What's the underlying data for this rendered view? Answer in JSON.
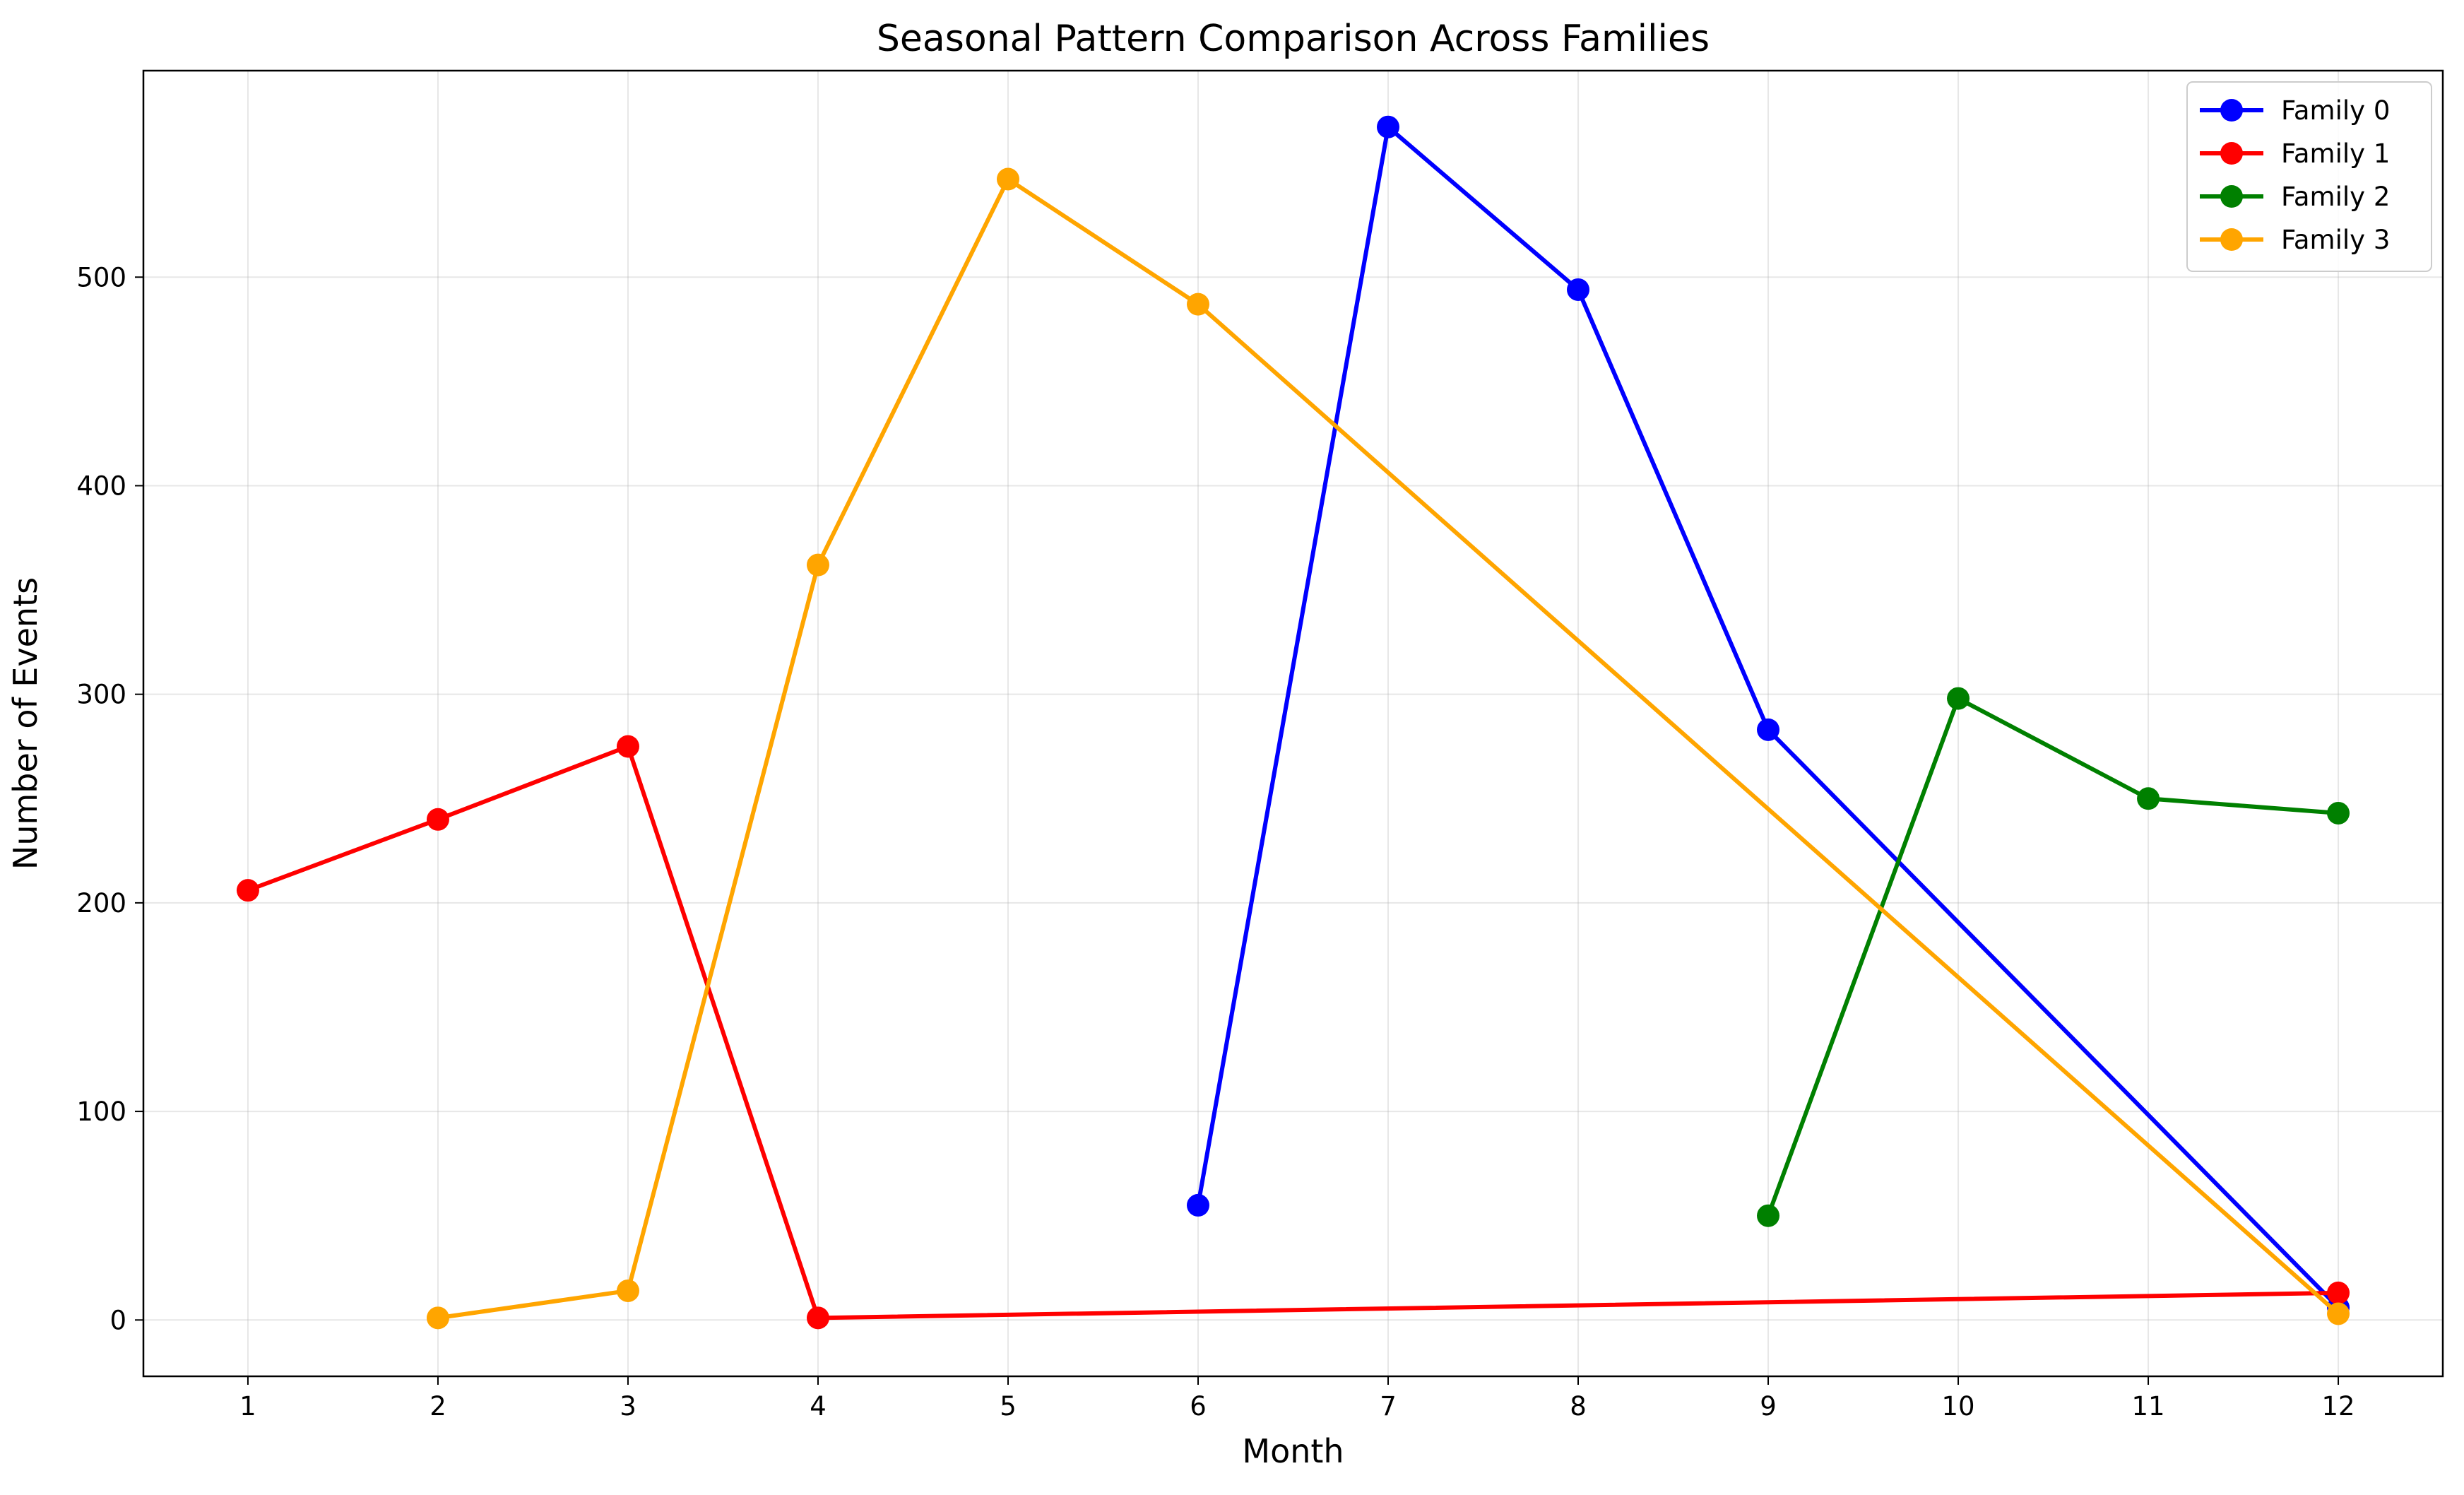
{
  "chart_data": {
    "type": "line",
    "title": "Seasonal Pattern Comparison Across Families",
    "xlabel": "Month",
    "ylabel": "Number of Events",
    "xlim": [
      0.45,
      12.55
    ],
    "ylim": [
      -27,
      599
    ],
    "x_ticks": [
      1,
      2,
      3,
      4,
      5,
      6,
      7,
      8,
      9,
      10,
      11,
      12
    ],
    "y_ticks": [
      0,
      100,
      200,
      300,
      400,
      500
    ],
    "grid": true,
    "legend_position": "top-right",
    "series": [
      {
        "name": "Family 0",
        "color": "#0000ff",
        "x": [
          6,
          7,
          8,
          9,
          12
        ],
        "y": [
          55,
          572,
          494,
          283,
          6
        ]
      },
      {
        "name": "Family 1",
        "color": "#ff0000",
        "x": [
          1,
          2,
          3,
          4,
          12
        ],
        "y": [
          206,
          240,
          275,
          1,
          13
        ]
      },
      {
        "name": "Family 2",
        "color": "#008000",
        "x": [
          9,
          10,
          11,
          12
        ],
        "y": [
          50,
          298,
          250,
          243
        ]
      },
      {
        "name": "Family 3",
        "color": "#ffa500",
        "x": [
          2,
          3,
          4,
          5,
          6,
          12
        ],
        "y": [
          1,
          14,
          362,
          547,
          487,
          3
        ]
      }
    ]
  }
}
